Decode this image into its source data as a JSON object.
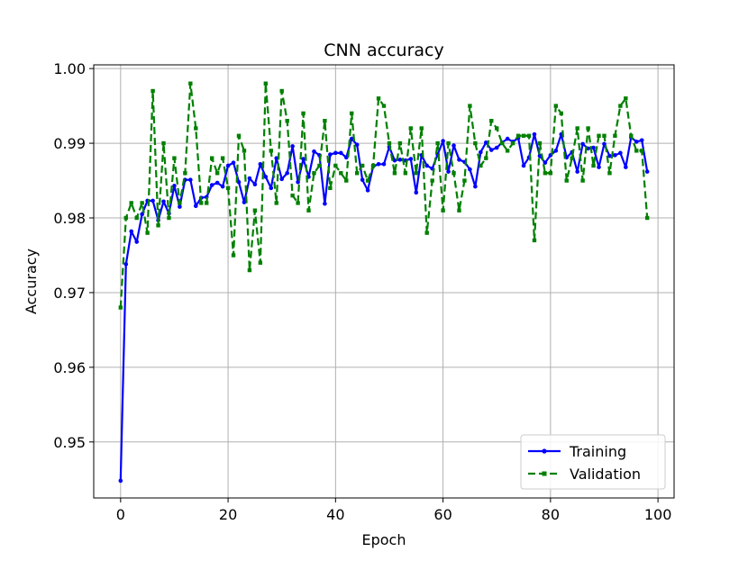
{
  "chart_data": {
    "type": "line",
    "title": "CNN accuracy",
    "xlabel": "Epoch",
    "ylabel": "Accuracy",
    "xlim": [
      -5,
      103
    ],
    "ylim": [
      0.9425,
      1.0005
    ],
    "xticks": [
      0,
      20,
      40,
      60,
      80,
      100
    ],
    "xtick_labels": [
      "0",
      "20",
      "40",
      "60",
      "80",
      "100"
    ],
    "yticks": [
      0.95,
      0.96,
      0.97,
      0.98,
      0.99,
      1.0
    ],
    "ytick_labels": [
      "0.95",
      "0.96",
      "0.97",
      "0.98",
      "0.99",
      "1.00"
    ],
    "grid": true,
    "legend_position": "bottom-right",
    "series": [
      {
        "name": "Training",
        "color": "#0000ff",
        "linestyle": "solid",
        "marker": "circle",
        "x": [
          0,
          1,
          2,
          3,
          4,
          5,
          6,
          7,
          8,
          9,
          10,
          11,
          12,
          13,
          14,
          15,
          16,
          17,
          18,
          19,
          20,
          21,
          22,
          23,
          24,
          25,
          26,
          27,
          28,
          29,
          30,
          31,
          32,
          33,
          34,
          35,
          36,
          37,
          38,
          39,
          40,
          41,
          42,
          43,
          44,
          45,
          46,
          47,
          48,
          49,
          50,
          51,
          52,
          53,
          54,
          55,
          56,
          57,
          58,
          59,
          60,
          61,
          62,
          63,
          64,
          65,
          66,
          67,
          68,
          69,
          70,
          71,
          72,
          73,
          74,
          75,
          76,
          77,
          78,
          79,
          80,
          81,
          82,
          83,
          84,
          85,
          86,
          87,
          88,
          89,
          90,
          91,
          92,
          93,
          94,
          95,
          96,
          97,
          98
        ],
        "values": [
          0.9448,
          0.9738,
          0.9782,
          0.9768,
          0.9805,
          0.9823,
          0.9823,
          0.9797,
          0.9822,
          0.9806,
          0.9843,
          0.9815,
          0.9851,
          0.9851,
          0.9816,
          0.9827,
          0.9828,
          0.9844,
          0.9847,
          0.9842,
          0.987,
          0.9874,
          0.9848,
          0.9821,
          0.9853,
          0.9845,
          0.9872,
          0.9855,
          0.984,
          0.988,
          0.9852,
          0.986,
          0.9896,
          0.9848,
          0.9879,
          0.9855,
          0.9889,
          0.9884,
          0.9819,
          0.9885,
          0.9887,
          0.9887,
          0.9881,
          0.9906,
          0.9898,
          0.9851,
          0.9837,
          0.9869,
          0.9872,
          0.9872,
          0.9895,
          0.9877,
          0.9878,
          0.9877,
          0.9879,
          0.9834,
          0.9884,
          0.987,
          0.9866,
          0.9885,
          0.9903,
          0.9862,
          0.9897,
          0.9878,
          0.9875,
          0.9865,
          0.9842,
          0.9888,
          0.9901,
          0.9891,
          0.9894,
          0.9901,
          0.9906,
          0.9902,
          0.9907,
          0.987,
          0.9881,
          0.9912,
          0.9883,
          0.9874,
          0.9884,
          0.989,
          0.9912,
          0.9881,
          0.9888,
          0.9862,
          0.9899,
          0.9893,
          0.9894,
          0.9868,
          0.9899,
          0.9883,
          0.9884,
          0.9887,
          0.9868,
          0.9908,
          0.9902,
          0.9904,
          0.9862
        ]
      },
      {
        "name": "Validation",
        "color": "#008000",
        "linestyle": "dashed",
        "marker": "square",
        "x": [
          0,
          1,
          2,
          3,
          4,
          5,
          6,
          7,
          8,
          9,
          10,
          11,
          12,
          13,
          14,
          15,
          16,
          17,
          18,
          19,
          20,
          21,
          22,
          23,
          24,
          25,
          26,
          27,
          28,
          29,
          30,
          31,
          32,
          33,
          34,
          35,
          36,
          37,
          38,
          39,
          40,
          41,
          42,
          43,
          44,
          45,
          46,
          47,
          48,
          49,
          50,
          51,
          52,
          53,
          54,
          55,
          56,
          57,
          58,
          59,
          60,
          61,
          62,
          63,
          64,
          65,
          66,
          67,
          68,
          69,
          70,
          71,
          72,
          73,
          74,
          75,
          76,
          77,
          78,
          79,
          80,
          81,
          82,
          83,
          84,
          85,
          86,
          87,
          88,
          89,
          90,
          91,
          92,
          93,
          94,
          95,
          96,
          97,
          98
        ],
        "values": [
          0.968,
          0.98,
          0.982,
          0.98,
          0.982,
          0.978,
          0.997,
          0.979,
          0.99,
          0.98,
          0.988,
          0.982,
          0.986,
          0.998,
          0.992,
          0.982,
          0.982,
          0.988,
          0.986,
          0.988,
          0.984,
          0.975,
          0.991,
          0.989,
          0.973,
          0.981,
          0.974,
          0.998,
          0.989,
          0.982,
          0.997,
          0.993,
          0.983,
          0.982,
          0.994,
          0.981,
          0.986,
          0.987,
          0.993,
          0.984,
          0.987,
          0.986,
          0.985,
          0.994,
          0.986,
          0.987,
          0.985,
          0.987,
          0.996,
          0.995,
          0.99,
          0.986,
          0.99,
          0.986,
          0.992,
          0.986,
          0.992,
          0.978,
          0.985,
          0.99,
          0.981,
          0.99,
          0.986,
          0.981,
          0.985,
          0.995,
          0.99,
          0.987,
          0.988,
          0.993,
          0.992,
          0.99,
          0.989,
          0.99,
          0.991,
          0.991,
          0.991,
          0.977,
          0.99,
          0.986,
          0.986,
          0.995,
          0.994,
          0.985,
          0.988,
          0.992,
          0.985,
          0.992,
          0.987,
          0.991,
          0.991,
          0.986,
          0.991,
          0.995,
          0.996,
          0.991,
          0.989,
          0.989,
          0.98
        ]
      }
    ]
  }
}
